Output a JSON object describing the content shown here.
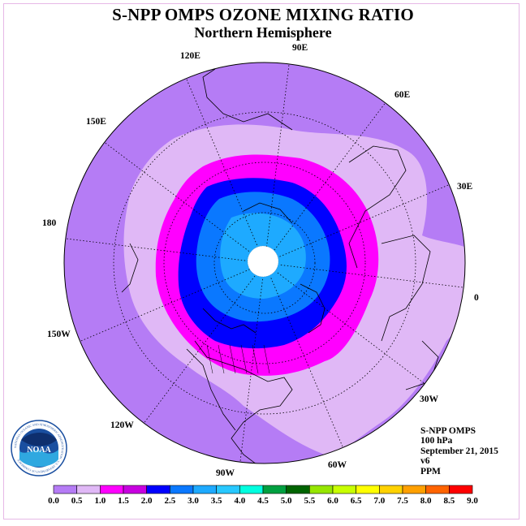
{
  "title": "S-NPP OMPS OZONE MIXING RATIO",
  "subtitle": "Northern Hemisphere",
  "info": {
    "instrument": "S-NPP OMPS",
    "level": "100 hPa",
    "date": "September 21, 2015",
    "version": "v6",
    "units": "PPM"
  },
  "logo": {
    "text": "NOAA",
    "ring_text": "NATIONAL OCEANIC AND ATMOSPHERIC ADMINISTRATION · U.S. DEPARTMENT OF COMMERCE"
  },
  "longitude_labels": [
    "90E",
    "60E",
    "30E",
    "0",
    "30W",
    "60W",
    "90W",
    "120W",
    "150W",
    "180",
    "150E",
    "120E"
  ],
  "colorbar": {
    "ticks": [
      "0.0",
      "0.5",
      "1.0",
      "1.5",
      "2.0",
      "2.5",
      "3.0",
      "3.5",
      "4.0",
      "4.5",
      "5.0",
      "5.5",
      "6.0",
      "6.5",
      "7.0",
      "7.5",
      "8.0",
      "8.5",
      "9.0"
    ],
    "colors": [
      "#b57cf5",
      "#e0b8f6",
      "#ff00ff",
      "#c800e0",
      "#0000ff",
      "#0a78ff",
      "#1eaaff",
      "#28c8ff",
      "#00ffe0",
      "#00a040",
      "#006400",
      "#96e600",
      "#c8ff00",
      "#ffff00",
      "#ffd200",
      "#ffa000",
      "#ff6400",
      "#ff0000",
      "#8c5a3c"
    ]
  },
  "map_data": {
    "projection": "north-polar-stereographic",
    "colors": {
      "ocean_outer": "#b57cf5",
      "band_0_5": "#e0b8f6",
      "band_1_0": "#ff00ff",
      "band_1_5": "#0000ff",
      "band_2_0": "#0a78ff",
      "band_2_5": "#1eaaff",
      "pole_missing": "#ffffff"
    }
  }
}
